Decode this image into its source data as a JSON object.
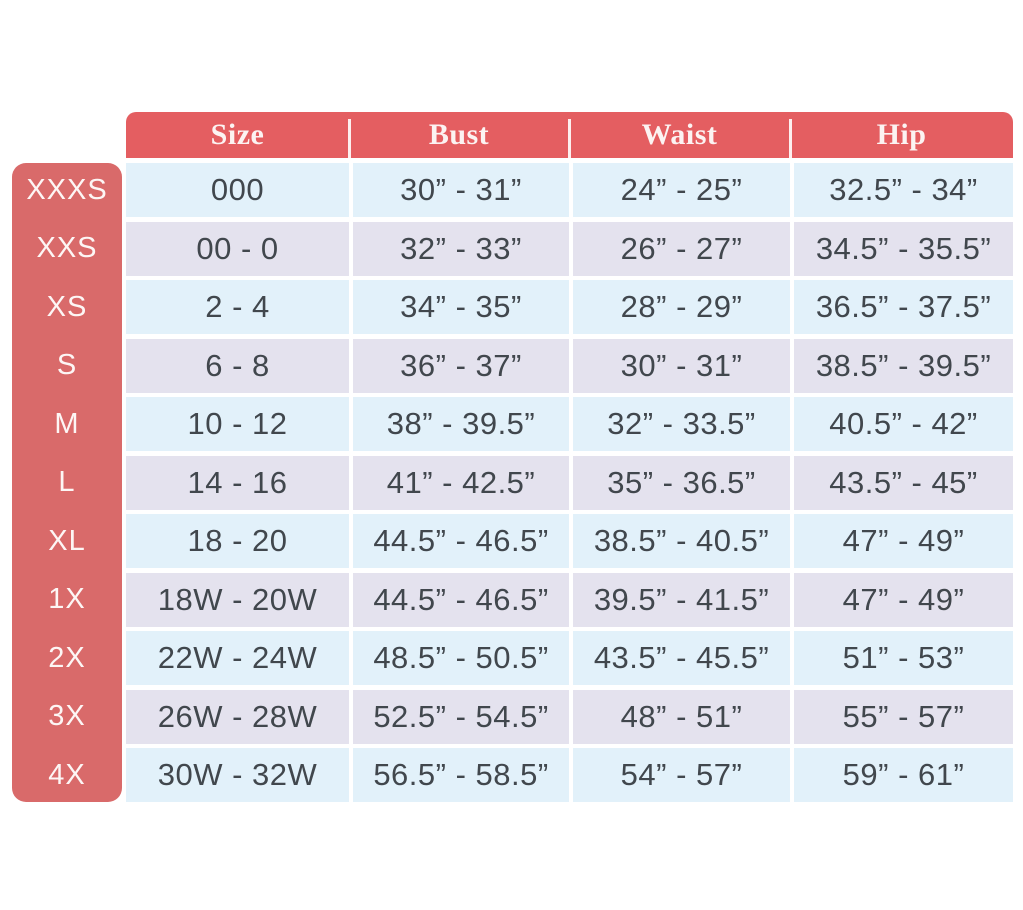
{
  "colors": {
    "header_bg": "#e45e61",
    "rail_bg": "#d96a6a",
    "row_blue": "#e2f1fa",
    "row_lavender": "#e4e2ee",
    "header_text": "#fcf3f2",
    "cell_text": "#41474d",
    "rail_text": "#fdf6f5",
    "page_bg": "#ffffff"
  },
  "layout_hints": {
    "row_striping": "odd rows pale blue, even rows lavender",
    "header_style": "coral bar, rounded top corners, white serif text",
    "side_rail_style": "coral rounded rectangle left of table"
  },
  "chart_data": {
    "type": "table",
    "columns": [
      "Size",
      "Bust",
      "Waist",
      "Hip"
    ],
    "rows": [
      {
        "label": "XXXS",
        "size": "000",
        "bust": "30” - 31”",
        "waist": "24” - 25”",
        "hip": "32.5” - 34”"
      },
      {
        "label": "XXS",
        "size": "00 - 0",
        "bust": "32” - 33”",
        "waist": "26” - 27”",
        "hip": "34.5” - 35.5”"
      },
      {
        "label": "XS",
        "size": "2 - 4",
        "bust": "34” - 35”",
        "waist": "28” - 29”",
        "hip": "36.5” - 37.5”"
      },
      {
        "label": "S",
        "size": "6 - 8",
        "bust": "36” - 37”",
        "waist": "30” - 31”",
        "hip": "38.5” - 39.5”"
      },
      {
        "label": "M",
        "size": "10 - 12",
        "bust": "38” - 39.5”",
        "waist": "32” - 33.5”",
        "hip": "40.5” - 42”"
      },
      {
        "label": "L",
        "size": "14 - 16",
        "bust": "41” - 42.5”",
        "waist": "35” - 36.5”",
        "hip": "43.5” - 45”"
      },
      {
        "label": "XL",
        "size": "18 - 20",
        "bust": "44.5” - 46.5”",
        "waist": "38.5” - 40.5”",
        "hip": "47” - 49”"
      },
      {
        "label": "1X",
        "size": "18W - 20W",
        "bust": "44.5” - 46.5”",
        "waist": "39.5” - 41.5”",
        "hip": "47” - 49”"
      },
      {
        "label": "2X",
        "size": "22W - 24W",
        "bust": "48.5” - 50.5”",
        "waist": "43.5” - 45.5”",
        "hip": "51” - 53”"
      },
      {
        "label": "3X",
        "size": "26W - 28W",
        "bust": "52.5” - 54.5”",
        "waist": "48” - 51”",
        "hip": "55” - 57”"
      },
      {
        "label": "4X",
        "size": "30W - 32W",
        "bust": "56.5” - 58.5”",
        "waist": "54” - 57”",
        "hip": "59” - 61”"
      }
    ]
  }
}
